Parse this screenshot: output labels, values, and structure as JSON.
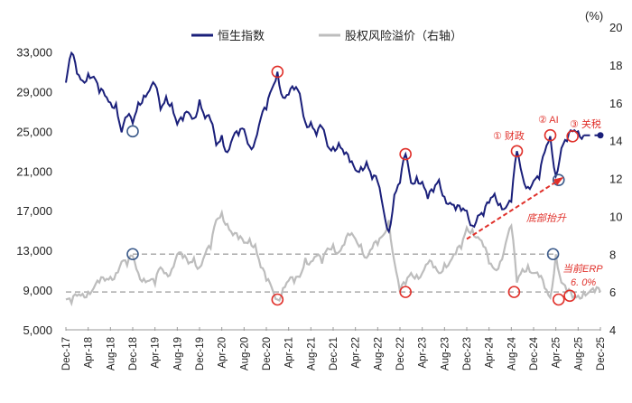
{
  "chart_data": {
    "type": "line",
    "right_axis_unit": "(%)",
    "legend": {
      "placement": "top",
      "items": [
        "恒生指数",
        "股权风险溢价（右轴）"
      ]
    },
    "x_tick_labels": [
      "Dec-17",
      "Apr-18",
      "Aug-18",
      "Dec-18",
      "Apr-19",
      "Aug-19",
      "Dec-19",
      "Apr-20",
      "Aug-20",
      "Dec-20",
      "Apr-21",
      "Aug-21",
      "Dec-21",
      "Apr-22",
      "Aug-22",
      "Dec-22",
      "Apr-23",
      "Aug-23",
      "Dec-23",
      "Apr-24",
      "Aug-24",
      "Dec-24",
      "Apr-25",
      "Aug-25",
      "Dec-25"
    ],
    "x_start": "2017-12",
    "x_step": "month",
    "left_axis": {
      "ticks": [
        5000,
        9000,
        13000,
        17000,
        21000,
        25000,
        29000,
        33000
      ],
      "tick_labels": [
        "5,000",
        "9,000",
        "13,000",
        "17,000",
        "21,000",
        "25,000",
        "29,000",
        "33,000"
      ],
      "range": [
        5000,
        35500
      ]
    },
    "right_axis": {
      "ticks": [
        4,
        6,
        8,
        10,
        12,
        14,
        16,
        18,
        20
      ],
      "range": [
        4,
        20
      ]
    },
    "grid": false,
    "series": [
      {
        "name": "恒生指数",
        "axis": "left",
        "color": "#1a1f7a",
        "values": [
          29900,
          32900,
          30800,
          30100,
          30800,
          30500,
          28900,
          28600,
          27900,
          27800,
          24900,
          26500,
          25800,
          27900,
          28600,
          29100,
          29700,
          27200,
          28500,
          27800,
          25700,
          26100,
          26900,
          26300,
          28200,
          26300,
          26100,
          23600,
          24600,
          22900,
          24400,
          24600,
          25200,
          23500,
          24100,
          26300,
          27200,
          29300,
          31000,
          28400,
          28700,
          29200,
          28800,
          25900,
          25900,
          24600,
          25400,
          23500,
          23400,
          23800,
          22700,
          21900,
          21100,
          21400,
          21900,
          20200,
          19900,
          17200,
          14900,
          18600,
          19800,
          22700,
          19800,
          20400,
          19900,
          18200,
          18900,
          20100,
          18400,
          17800,
          17100,
          17000,
          17000,
          15500,
          16500,
          16500,
          17800,
          18700,
          17700,
          17300,
          17900,
          23000,
          20500,
          19400,
          20000,
          20200,
          22900,
          24500,
          20500,
          23300,
          24000,
          25000,
          25000,
          24600
        ],
        "projection": {
          "date": "Dec-25",
          "value": 24600,
          "style": "dashed"
        }
      },
      {
        "name": "股权风险溢价（右轴）",
        "axis": "right",
        "color": "#bdbdbd",
        "values": [
          5.6,
          5.4,
          5.8,
          5.9,
          6.0,
          6.2,
          6.5,
          6.6,
          6.8,
          7.0,
          7.6,
          7.4,
          7.9,
          7.0,
          6.7,
          6.6,
          6.4,
          7.3,
          7.0,
          7.2,
          8.0,
          7.8,
          7.5,
          7.8,
          7.3,
          8.0,
          8.3,
          9.8,
          10.2,
          9.6,
          9.0,
          8.8,
          8.6,
          8.8,
          8.5,
          7.3,
          6.6,
          6.2,
          5.6,
          6.2,
          6.6,
          6.5,
          6.8,
          7.8,
          7.6,
          7.9,
          7.5,
          8.3,
          8.5,
          8.1,
          8.5,
          9.0,
          8.8,
          8.5,
          7.8,
          8.3,
          8.5,
          9.0,
          9.8,
          7.6,
          6.0,
          6.4,
          7.0,
          6.9,
          7.0,
          7.5,
          7.3,
          7.0,
          7.5,
          7.6,
          8.0,
          8.3,
          9.4,
          9.3,
          8.9,
          8.4,
          7.5,
          7.2,
          7.6,
          8.6,
          9.5,
          6.5,
          7.2,
          7.4,
          7.0,
          6.8,
          6.2,
          5.7,
          8.0,
          6.5,
          6.0,
          5.7,
          5.8,
          6.0,
          6.0,
          6.0,
          6.0
        ],
        "projection_style": "dashed"
      }
    ],
    "reference_lines": [
      {
        "axis": "right",
        "value": 8,
        "from": "Dec-18",
        "to": "Apr-25",
        "style": "dashed",
        "color": "#aaaaaa"
      },
      {
        "axis": "right",
        "value": 6,
        "from": "Dec-17",
        "to": "Dec-25",
        "style": "dashed",
        "color": "#aaaaaa"
      }
    ],
    "markers": [
      {
        "axis": "left",
        "month": 12,
        "value": 25000,
        "color": "#3b5a8a"
      },
      {
        "axis": "left",
        "month": 38,
        "value": 31000,
        "color": "#e0302a"
      },
      {
        "axis": "left",
        "month": 61,
        "value": 22700,
        "color": "#e0302a"
      },
      {
        "axis": "left",
        "month": 81,
        "value": 23000,
        "color": "#e0302a"
      },
      {
        "axis": "left",
        "month": 87,
        "value": 24600,
        "color": "#e0302a"
      },
      {
        "axis": "left",
        "month": 91,
        "value": 24500,
        "color": "#e0302a"
      },
      {
        "axis": "left",
        "month": 88.5,
        "value": 20100,
        "color": "#3b5a8a"
      },
      {
        "axis": "right",
        "month": 12,
        "value": 8.0,
        "color": "#3b5a8a"
      },
      {
        "axis": "right",
        "month": 38,
        "value": 5.6,
        "color": "#e0302a"
      },
      {
        "axis": "right",
        "month": 61,
        "value": 6.0,
        "color": "#e0302a"
      },
      {
        "axis": "right",
        "month": 80.5,
        "value": 6.0,
        "color": "#e0302a"
      },
      {
        "axis": "right",
        "month": 87.5,
        "value": 8.0,
        "color": "#3b5a8a"
      },
      {
        "axis": "right",
        "month": 88.5,
        "value": 5.6,
        "color": "#e0302a"
      },
      {
        "axis": "right",
        "month": 90.5,
        "value": 5.8,
        "color": "#e0302a"
      }
    ],
    "annotations": {
      "fiscal": "① 财政",
      "ai": "② AI",
      "tariff": "③ 关税",
      "bottom_rising": "底部抬升",
      "current_erp_label": "当前ERP",
      "current_erp_value": "6. 0%"
    },
    "trend_arrow": {
      "from": {
        "month": 72,
        "value_right": 8.8
      },
      "to": {
        "month": 89,
        "value_right": 12.0
      },
      "color": "#e0302a",
      "style": "dashed"
    }
  }
}
